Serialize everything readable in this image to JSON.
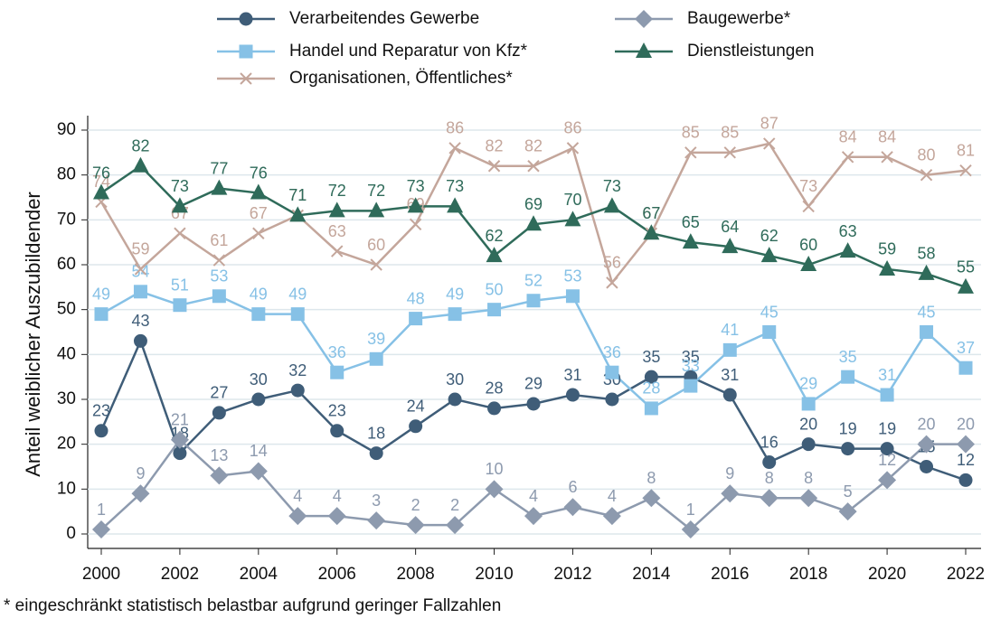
{
  "chart_data": {
    "type": "line",
    "y_label": "Anteil weiblicher Auszubildender",
    "footnote": "* eingeschränkt statistisch belastbar aufgrund geringer Fallzahlen",
    "x": [
      2000,
      2001,
      2002,
      2003,
      2004,
      2005,
      2006,
      2007,
      2008,
      2009,
      2010,
      2011,
      2012,
      2013,
      2014,
      2015,
      2016,
      2017,
      2018,
      2019,
      2020,
      2021,
      2022
    ],
    "xlim": [
      2000,
      2022
    ],
    "xticks": [
      2000,
      2002,
      2004,
      2006,
      2008,
      2010,
      2012,
      2014,
      2016,
      2018,
      2020,
      2022
    ],
    "ylim": [
      0,
      90
    ],
    "yticks": [
      0,
      10,
      20,
      30,
      40,
      50,
      60,
      70,
      80,
      90
    ],
    "grid": true,
    "series": [
      {
        "name": "Verarbeitendes Gewerbe",
        "color": "#3f5d78",
        "marker": "circle",
        "values": [
          23,
          43,
          18,
          27,
          30,
          32,
          23,
          18,
          24,
          30,
          28,
          29,
          31,
          30,
          35,
          35,
          31,
          16,
          20,
          19,
          19,
          15,
          12
        ]
      },
      {
        "name": "Handel und Reparatur von Kfz*",
        "color": "#86c1e6",
        "marker": "square",
        "values": [
          49,
          54,
          51,
          53,
          49,
          49,
          36,
          39,
          48,
          49,
          50,
          52,
          53,
          36,
          28,
          33,
          41,
          45,
          29,
          35,
          31,
          45,
          37
        ]
      },
      {
        "name": "Organisationen, Öffentliches*",
        "color": "#c4a69b",
        "marker": "x",
        "values": [
          74,
          59,
          67,
          61,
          67,
          71,
          63,
          60,
          69,
          86,
          82,
          82,
          86,
          56,
          67,
          85,
          85,
          87,
          73,
          84,
          84,
          80,
          81
        ]
      },
      {
        "name": "Baugewerbe*",
        "color": "#8d9aae",
        "marker": "diamond",
        "values": [
          1,
          9,
          21,
          13,
          14,
          4,
          4,
          3,
          2,
          2,
          10,
          4,
          6,
          4,
          8,
          1,
          9,
          8,
          8,
          5,
          12,
          20,
          20
        ]
      },
      {
        "name": "Dienstleistungen",
        "color": "#2f6b5a",
        "marker": "triangle",
        "values": [
          76,
          82,
          73,
          77,
          76,
          71,
          72,
          72,
          73,
          73,
          62,
          69,
          70,
          73,
          67,
          65,
          64,
          62,
          60,
          63,
          59,
          58,
          55
        ]
      }
    ]
  }
}
